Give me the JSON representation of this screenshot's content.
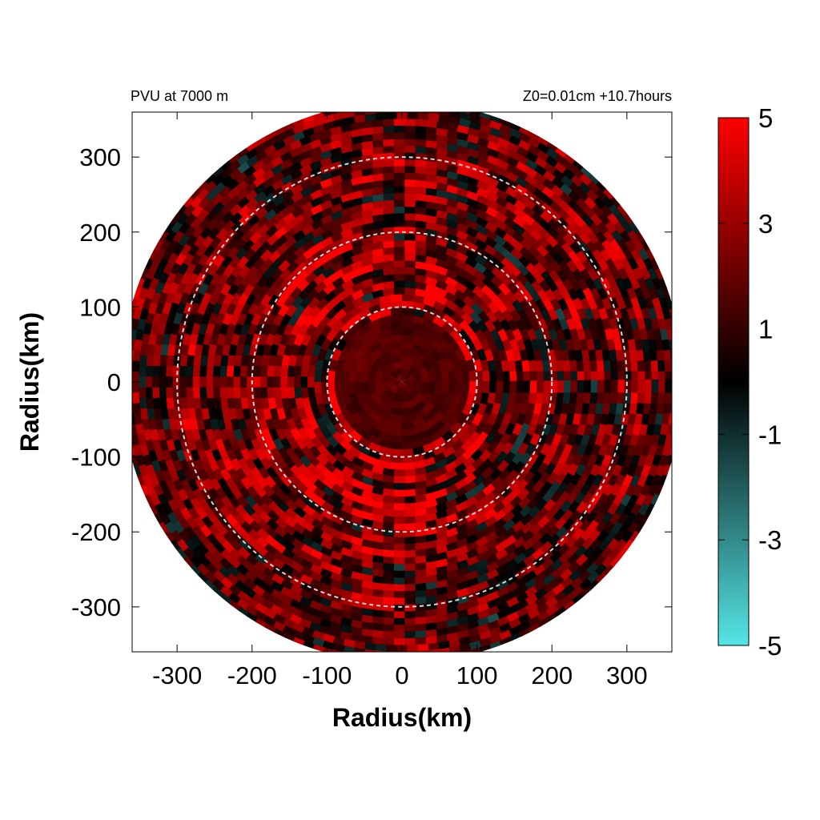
{
  "header": {
    "left": "PVU at  7000 m",
    "right": "Z0=0.01cm  +10.7hours"
  },
  "chart_data": {
    "type": "heatmap",
    "subtype": "polar-field-on-cartesian-grid",
    "title": "PVU at  7000 m",
    "subtitle": "Z0=0.01cm  +10.7hours",
    "xlabel": "Radius(km)",
    "ylabel": "Radius(km)",
    "xlim": [
      -360,
      360
    ],
    "ylim": [
      -360,
      360
    ],
    "x_ticks": [
      -300,
      -200,
      -100,
      0,
      100,
      200,
      300
    ],
    "y_ticks": [
      300,
      200,
      100,
      0,
      -100,
      -200,
      -300
    ],
    "x_tick_labels": [
      "-300",
      "-200",
      "-100",
      "0",
      "100",
      "200",
      "300"
    ],
    "y_tick_labels": [
      "300",
      "200",
      "100",
      "0",
      "-100",
      "-200",
      "-300"
    ],
    "domain_radius_km": 375,
    "reference_circles_km": [
      100,
      200,
      300
    ],
    "colorbar": {
      "min": -5,
      "max": 5,
      "ticks": [
        5,
        3,
        1,
        -1,
        -3,
        -5
      ],
      "tick_labels": [
        "5",
        "3",
        "1",
        "-1",
        "-3",
        "-5"
      ],
      "colors": {
        "high": "#ff0000",
        "mid": "#000000",
        "low": "#55e6e6"
      }
    },
    "field_bands": [
      {
        "r_min": 0,
        "r_max": 90,
        "mean": 1.5,
        "variability": 0.8
      },
      {
        "r_min": 90,
        "r_max": 200,
        "mean": 2.0,
        "variability": 4.5
      },
      {
        "r_min": 200,
        "r_max": 300,
        "mean": 1.6,
        "variability": 4.0
      },
      {
        "r_min": 300,
        "r_max": 375,
        "mean": 1.2,
        "variability": 3.8
      }
    ]
  }
}
